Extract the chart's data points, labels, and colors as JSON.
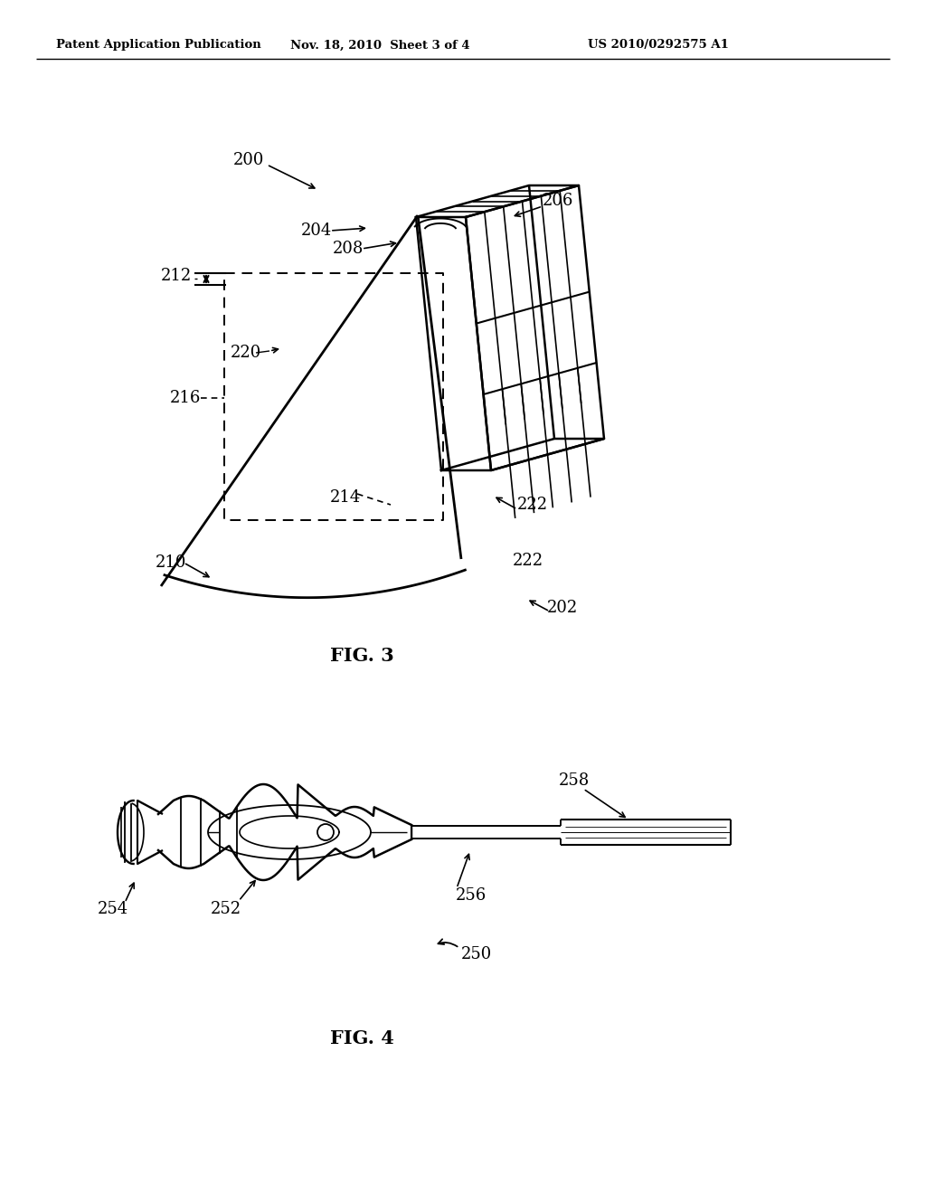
{
  "background_color": "#ffffff",
  "header_left": "Patent Application Publication",
  "header_center": "Nov. 18, 2010  Sheet 3 of 4",
  "header_right": "US 2010/0292575 A1",
  "fig3_label": "FIG. 3",
  "fig4_label": "FIG. 4",
  "line_color": "#000000"
}
